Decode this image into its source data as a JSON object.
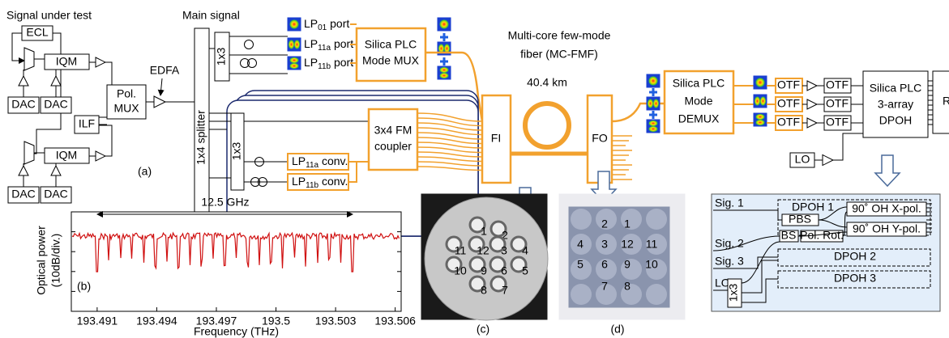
{
  "panel_a": {
    "label": "(a)",
    "signal_under_test": "Signal under test",
    "ecl": "ECL",
    "iqm": [
      "IQM",
      "IQM"
    ],
    "dac": [
      "DAC",
      "DAC",
      "DAC",
      "DAC"
    ],
    "ilf": "ILF",
    "pol_mux": [
      "Pol.",
      "MUX"
    ],
    "edfa": "EDFA",
    "splitter": "1x4 splitter",
    "main_signal": "Main signal",
    "splitter_1x3": [
      "1x3",
      "1x3"
    ],
    "ports": [
      {
        "base": "LP",
        "sub": "01",
        "rest": " port"
      },
      {
        "base": "LP",
        "sub": "11a",
        "rest": " port"
      },
      {
        "base": "LP",
        "sub": "11b",
        "rest": " port"
      }
    ],
    "mode_mux": [
      "Silica PLC",
      "Mode MUX"
    ],
    "fiber": [
      "Multi-core few-mode",
      "fiber (MC-FMF)"
    ],
    "length": "40.4 km",
    "fi": "FI",
    "fo": "FO",
    "converters": [
      {
        "base": "LP",
        "sub": "11a",
        "rest": " conv."
      },
      {
        "base": "LP",
        "sub": "11b",
        "rest": " conv."
      }
    ],
    "coupler": [
      "3x4 FM",
      "coupler"
    ],
    "mode_demux": [
      "Silica PLC",
      "Mode",
      "DEMUX"
    ],
    "otf": [
      "OTF",
      "OTF",
      "OTF",
      "OTF",
      "OTF",
      "OTF"
    ],
    "dpoh": [
      "Silica PLC",
      "3-array",
      "DPOH"
    ],
    "rx": "Rx",
    "lo": "LO"
  },
  "panel_b": {
    "label": "(b)",
    "ylabel": [
      "Optical power",
      "(10dB/div.)"
    ],
    "xlabel": "Frequency (THz)",
    "annotation": "12.5 GHz",
    "xlim": [
      193.4897,
      193.5063
    ],
    "xticks": [
      193.491,
      193.494,
      193.497,
      193.5,
      193.503,
      193.506
    ]
  },
  "panel_c": {
    "label": "(c)",
    "cores": [
      "1",
      "2",
      "11",
      "12",
      "3",
      "4",
      "10",
      "9",
      "6",
      "5",
      "8",
      "7"
    ]
  },
  "panel_d": {
    "label": "(d)",
    "cores": [
      "2",
      "1",
      "4",
      "3",
      "12",
      "11",
      "5",
      "6",
      "9",
      "10",
      "7",
      "8"
    ]
  },
  "inset": {
    "signals": [
      "Sig. 1",
      "Sig. 2",
      "Sig. 3",
      "LO"
    ],
    "dpoh": [
      "DPOH 1",
      "DPOH 2",
      "DPOH 3"
    ],
    "pbs": "PBS",
    "bs": "BS",
    "pol_rot": "Pol. Rot.",
    "oh": [
      "90˚ OH X-pol.",
      "90˚ OH Y-pol."
    ],
    "splitter": "1x3"
  }
}
